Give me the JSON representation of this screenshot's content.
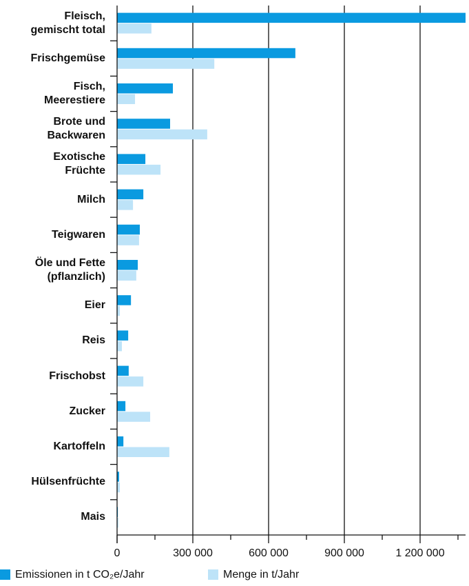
{
  "chart_data": {
    "type": "bar",
    "orientation": "horizontal",
    "categories": [
      "Fleisch,\ngemischt total",
      "Frischgemüse",
      "Fisch,\nMeerestiere",
      "Brote und\nBackwaren",
      "Exotische\nFrüchte",
      "Milch",
      "Teigwaren",
      "Öle und Fette\n(pflanzlich)",
      "Eier",
      "Reis",
      "Frischobst",
      "Zucker",
      "Kartoffeln",
      "Hülsenfrüchte",
      "Mais"
    ],
    "series": [
      {
        "name": "Emissionen in t CO₂e/Jahr",
        "color": "#0a9ae0",
        "values": [
          1380000,
          706000,
          221000,
          210000,
          112000,
          104000,
          90000,
          82000,
          55000,
          44000,
          46000,
          33000,
          25000,
          8000,
          3000
        ]
      },
      {
        "name": "Menge in t/Jahr",
        "color": "#bde3f8",
        "values": [
          136000,
          385000,
          71000,
          357000,
          172000,
          63000,
          87000,
          76000,
          11000,
          19000,
          104000,
          131000,
          207000,
          11000,
          5000
        ]
      }
    ],
    "xlim": [
      0,
      1380000
    ],
    "xticks": [
      0,
      {
        "value": 300000,
        "label": "300 000"
      },
      {
        "value": 600000,
        "label": "600 000"
      },
      {
        "value": 900000,
        "label": "900 000"
      },
      {
        "value": 1200000,
        "label": "1 200 000"
      }
    ],
    "xminorticks": [
      150000,
      450000,
      750000,
      1050000,
      1350000
    ],
    "grid": true,
    "legend": "bottom-left"
  }
}
